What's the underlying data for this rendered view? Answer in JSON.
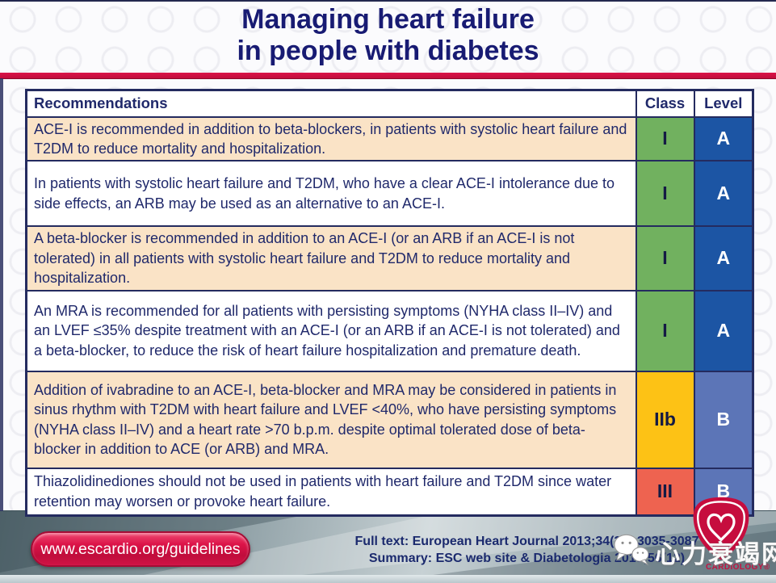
{
  "slide_title": {
    "line1": "Managing heart failure",
    "line2": "in people with diabetes"
  },
  "table": {
    "headers": {
      "recommendations": "Recommendations",
      "class": "Class",
      "level": "Level"
    },
    "rows": [
      {
        "text": "ACE-I is recommended in addition to beta-blockers, in patients with systolic heart failure and T2DM to reduce mortality and hospitalization.",
        "class_label": "I",
        "level_label": "A",
        "row_bg": "#FAE3C6",
        "class_bg": "#71B15F",
        "level_bg": "#1C55A4"
      },
      {
        "text": "In patients with systolic heart failure and T2DM, who have a clear ACE-I intolerance due to side effects, an ARB may be used as an alternative to an ACE-I.",
        "class_label": "I",
        "level_label": "A",
        "row_bg": "#FFFFFF",
        "class_bg": "#71B15F",
        "level_bg": "#1C55A4"
      },
      {
        "text": "A beta-blocker is recommended in addition to an ACE-I (or an ARB if an ACE-I is not tolerated) in all patients with systolic heart failure and T2DM to reduce mortality and hospitalization.",
        "class_label": "I",
        "level_label": "A",
        "row_bg": "#FAE3C6",
        "class_bg": "#71B15F",
        "level_bg": "#1C55A4"
      },
      {
        "text": "An MRA is recommended for all patients with persisting symptoms (NYHA class II–IV) and an LVEF ≤35% despite treatment with an ACE-I (or an ARB if an ACE-I is not tolerated) and a beta-blocker, to reduce the risk of heart failure hospitalization and premature death.",
        "class_label": "I",
        "level_label": "A",
        "row_bg": "#FFFFFF",
        "class_bg": "#71B15F",
        "level_bg": "#1C55A4"
      },
      {
        "text": "Addition of ivabradine to an ACE-I, beta-blocker and MRA may be considered in patients in sinus rhythm with T2DM with heart failure and LVEF <40%, who have persisting symptoms (NYHA class II–IV) and a heart rate >70 b.p.m. despite optimal tolerated dose of beta-blocker in addition to ACE (or ARB) and MRA.",
        "class_label": "IIb",
        "level_label": "B",
        "row_bg": "#FAE3C6",
        "class_bg": "#FDC215",
        "level_bg": "#5C75B7"
      },
      {
        "text": "Thiazolidinediones should not be used in patients with heart failure and T2DM since water retention may worsen or provoke heart failure.",
        "class_label": "III",
        "level_label": "B",
        "row_bg": "#FFFFFF",
        "class_bg": "#EE6350",
        "level_bg": "#5C75B7"
      }
    ]
  },
  "footer": {
    "url_button": "www.escardio.org/guidelines",
    "reference_line1": "Full text: European Heart Journal 2013;34(39):3035-3087",
    "reference_line2": "Summary: ESC web site & Diabetologia 2013;56(12)",
    "watermark_text": "心力衰竭网",
    "esc_logo_caption": "CARDIOLOGY®"
  },
  "colors": {
    "title_navy": "#181B73",
    "text_navy": "#20296B",
    "table_border": "#242B5F",
    "red_rule": "#C8103E",
    "class_I_green": "#71B15F",
    "class_IIb_yellow": "#FDC215",
    "class_III_red": "#EE6350",
    "level_A_blue": "#1C55A4",
    "level_B_blue": "#5C75B7",
    "row_peach": "#FAE3C6",
    "pill_red": "#D01145",
    "footer_teal": "#8FA0A6"
  }
}
